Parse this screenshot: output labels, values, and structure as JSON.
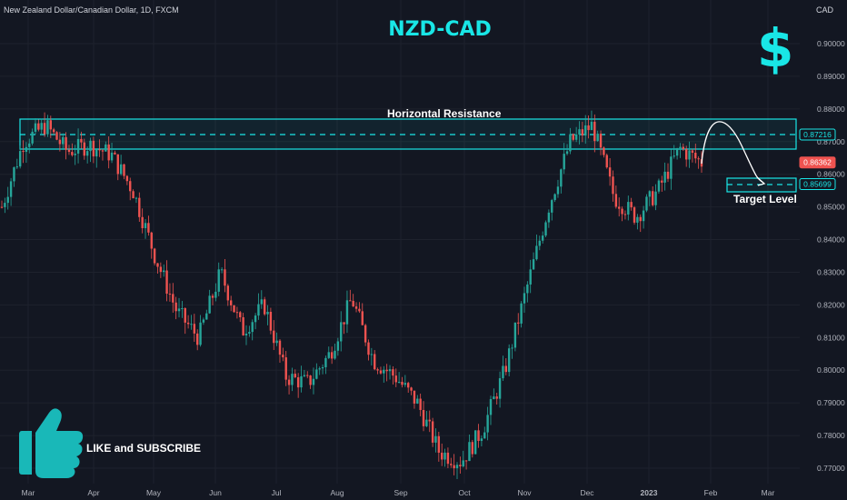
{
  "header": {
    "symbol_title": "New Zealand Dollar/Canadian Dollar, 1D, FXCM",
    "pair_title": "NZD-CAD",
    "currency_label": "CAD"
  },
  "annotations": {
    "resistance_label": "Horizontal Resistance",
    "target_label": "Target Level",
    "cta_label": "LIKE and SUBSCRIBE"
  },
  "icons": [
    "dollar-icon",
    "thumbs-up-icon",
    "curved-arrow-icon"
  ],
  "colors": {
    "background": "#131722",
    "accent": "#19e6e6",
    "up_candle": "#26a69a",
    "down_candle": "#ef5350",
    "price_badge": "#ef5350"
  },
  "chart_data": {
    "type": "candlestick",
    "title": "NZD-CAD",
    "y_axis": {
      "ticks": [
        "0.90000",
        "0.89000",
        "0.88000",
        "0.87000",
        "0.86000",
        "0.85000",
        "0.84000",
        "0.83000",
        "0.82000",
        "0.81000",
        "0.80000",
        "0.79000",
        "0.78000",
        "0.77000"
      ],
      "range": [
        0.7675,
        0.9045
      ],
      "side": "right"
    },
    "x_axis": {
      "ticks": [
        "Mar",
        "Apr",
        "May",
        "Jun",
        "Jul",
        "Aug",
        "Sep",
        "Oct",
        "Nov",
        "Dec",
        "2023",
        "Feb",
        "Mar"
      ]
    },
    "price_badges": [
      {
        "value": "0.87216",
        "role": "resistance"
      },
      {
        "value": "0.86362",
        "role": "last-price"
      },
      {
        "value": "0.85699",
        "role": "target"
      }
    ],
    "resistance_zone": {
      "top": 0.8772,
      "bottom": 0.8679,
      "level": 0.87216
    },
    "target_zone": {
      "top": 0.8594,
      "bottom": 0.855,
      "level": 0.85699
    },
    "price_path": [
      {
        "month": "Mar",
        "close": 0.85
      },
      {
        "month": "Mar",
        "close": 0.87
      },
      {
        "month": "Mar",
        "close": 0.875
      },
      {
        "month": "Mar",
        "close": 0.867
      },
      {
        "month": "Apr",
        "close": 0.869
      },
      {
        "month": "Apr",
        "close": 0.866
      },
      {
        "month": "Apr",
        "close": 0.855
      },
      {
        "month": "May",
        "close": 0.835
      },
      {
        "month": "May",
        "close": 0.818
      },
      {
        "month": "May",
        "close": 0.81
      },
      {
        "month": "Jun",
        "close": 0.83
      },
      {
        "month": "Jun",
        "close": 0.812
      },
      {
        "month": "Jun",
        "close": 0.82
      },
      {
        "month": "Jul",
        "close": 0.798
      },
      {
        "month": "Jul",
        "close": 0.796
      },
      {
        "month": "Aug",
        "close": 0.805
      },
      {
        "month": "Aug",
        "close": 0.822
      },
      {
        "month": "Aug",
        "close": 0.803
      },
      {
        "month": "Sep",
        "close": 0.798
      },
      {
        "month": "Sep",
        "close": 0.79
      },
      {
        "month": "Oct",
        "close": 0.775
      },
      {
        "month": "Oct",
        "close": 0.772
      },
      {
        "month": "Oct",
        "close": 0.782
      },
      {
        "month": "Nov",
        "close": 0.8
      },
      {
        "month": "Nov",
        "close": 0.825
      },
      {
        "month": "Nov",
        "close": 0.85
      },
      {
        "month": "Dec",
        "close": 0.87
      },
      {
        "month": "Dec",
        "close": 0.875
      },
      {
        "month": "Dec",
        "close": 0.853
      },
      {
        "month": "2023",
        "close": 0.847
      },
      {
        "month": "2023",
        "close": 0.855
      },
      {
        "month": "2023",
        "close": 0.868
      },
      {
        "month": "2023",
        "close": 0.8636
      }
    ]
  }
}
